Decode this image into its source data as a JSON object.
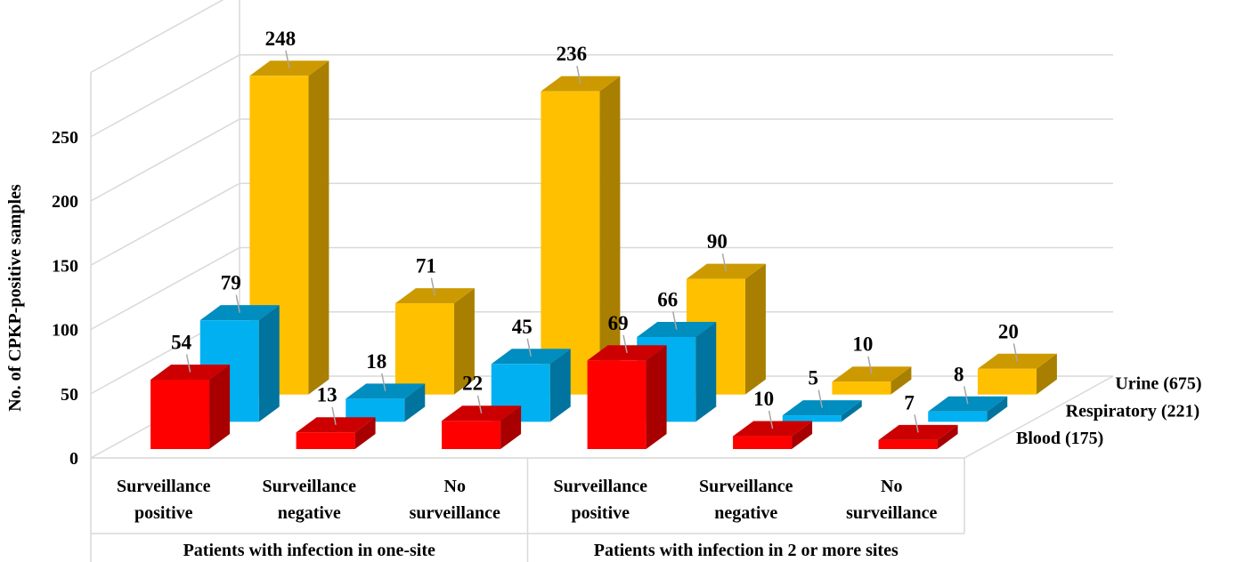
{
  "chart_data": {
    "type": "bar",
    "ylabel": "No. of CPKP-positive samples",
    "ylim": [
      0,
      250
    ],
    "yticks": [
      "0",
      "50",
      "100",
      "150",
      "200",
      "250"
    ],
    "categories": [
      {
        "line1": "Surveillance",
        "line2": "positive"
      },
      {
        "line1": "Surveillance",
        "line2": "negative"
      },
      {
        "line1": "No",
        "line2": "surveillance"
      },
      {
        "line1": "Surveillance",
        "line2": "positive"
      },
      {
        "line1": "Surveillance",
        "line2": "negative"
      },
      {
        "line1": "No",
        "line2": "surveillance"
      }
    ],
    "groups": [
      "Patients with infection in one-site",
      "Patients with infection in 2 or more sites"
    ],
    "series": [
      {
        "name": "Blood (175)",
        "color": "#ff0000",
        "values": [
          54,
          13,
          22,
          69,
          10,
          7
        ]
      },
      {
        "name": "Respiratory (221)",
        "color": "#00b0f0",
        "values": [
          79,
          18,
          45,
          66,
          5,
          8
        ]
      },
      {
        "name": "Urine (675)",
        "color": "#ffc000",
        "values": [
          248,
          71,
          236,
          90,
          10,
          20
        ]
      }
    ],
    "grid": true,
    "legend": "right"
  }
}
